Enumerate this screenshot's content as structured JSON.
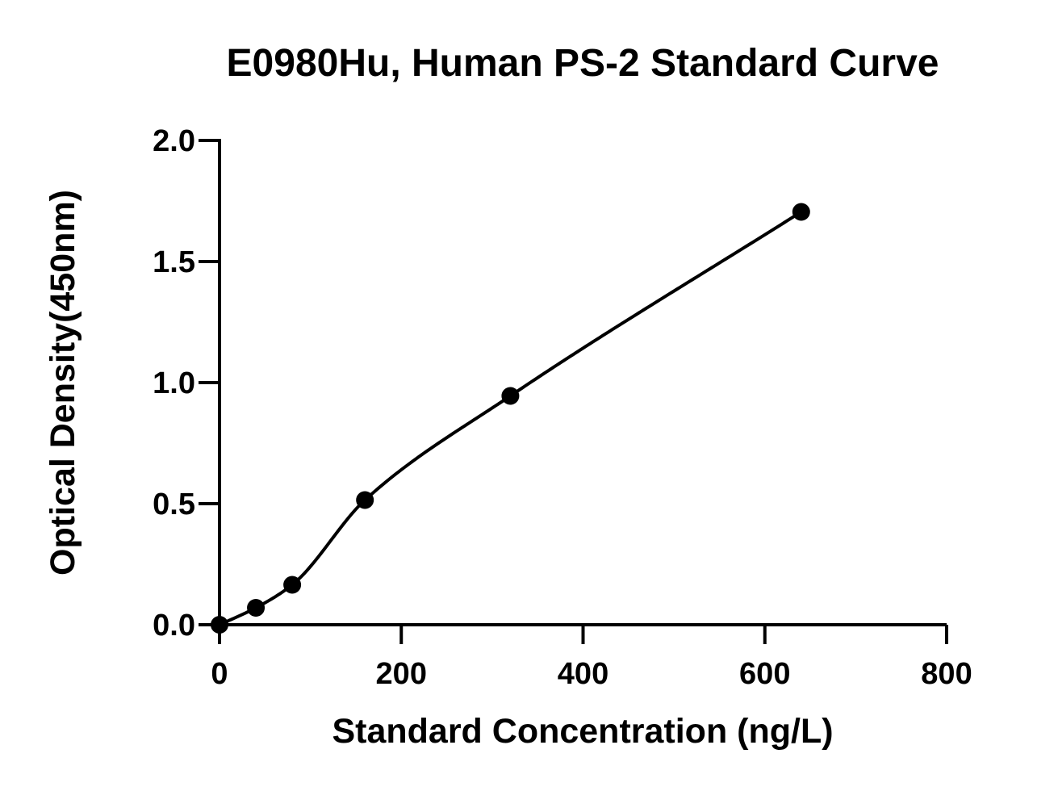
{
  "chart_data": {
    "type": "scatter",
    "title": "E0980Hu, Human PS-2 Standard Curve",
    "xlabel": "Standard Concentration (ng/L)",
    "ylabel": "Optical Density(450nm)",
    "xlim": [
      0,
      800
    ],
    "ylim": [
      0,
      2.0
    ],
    "x_ticks": [
      "0",
      "200",
      "400",
      "600",
      "800"
    ],
    "y_ticks": [
      "0.0",
      "0.5",
      "1.0",
      "1.5",
      "2.0"
    ],
    "grid": false,
    "legend": "none",
    "fit_curve": "smooth standard curve through points",
    "series": [
      {
        "x": [
          0,
          40,
          80,
          160,
          320,
          640
        ],
        "y": [
          0.0,
          0.07,
          0.165,
          0.515,
          0.945,
          1.705
        ]
      }
    ],
    "colors": {
      "points": "#000000",
      "curve": "#000000",
      "axes": "#000000"
    }
  }
}
